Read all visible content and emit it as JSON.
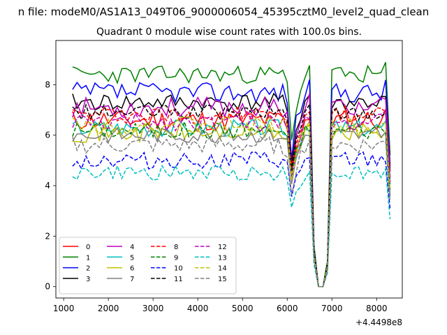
{
  "chart_data": {
    "type": "line",
    "suptitle": "n file: modeM0/AS1A13_049T06_9000006054_45395cztM0_level2_quad_clean",
    "title": "Quadrant 0 module wise count rates with 100.0s bins.",
    "xlabel": "",
    "ylabel": "",
    "x_offset_label": "+4.4498e8",
    "xlim": [
      826,
      8574
    ],
    "ylim": [
      -0.45,
      9.75
    ],
    "xticks": [
      1000,
      2000,
      3000,
      4000,
      5000,
      6000,
      7000,
      8000
    ],
    "yticks": [
      0,
      2,
      4,
      6,
      8
    ],
    "gap_profile": {
      "x": [
        5900,
        6000,
        6100,
        6200,
        6300,
        6400,
        6500,
        6600,
        6700,
        6800,
        6900,
        7000
      ],
      "factor": [
        1.0,
        0.95,
        0.68,
        0.85,
        0.93,
        1.0,
        1.04,
        0.2,
        0.0,
        0.0,
        0.12,
        1.0
      ]
    },
    "tail_profile": {
      "x": [
        8100,
        8200,
        8300
      ],
      "factor": [
        1.0,
        1.02,
        0.62
      ]
    },
    "series": [
      {
        "name": "0",
        "color": "#ff0000",
        "style": "solid",
        "base": 6.6,
        "amp": 0.42,
        "seed": 11
      },
      {
        "name": "1",
        "color": "#008000",
        "style": "solid",
        "base": 8.4,
        "amp": 0.35,
        "seed": 23
      },
      {
        "name": "2",
        "color": "#0000ff",
        "style": "solid",
        "base": 7.7,
        "amp": 0.4,
        "seed": 37
      },
      {
        "name": "3",
        "color": "#000000",
        "style": "solid",
        "base": 7.3,
        "amp": 0.35,
        "seed": 41
      },
      {
        "name": "4",
        "color": "#bf00bf",
        "style": "solid",
        "base": 7.1,
        "amp": 0.4,
        "seed": 53
      },
      {
        "name": "5",
        "color": "#00bfbf",
        "style": "solid",
        "base": 6.3,
        "amp": 0.35,
        "seed": 67
      },
      {
        "name": "6",
        "color": "#bfbf00",
        "style": "solid",
        "base": 6.1,
        "amp": 0.38,
        "seed": 71
      },
      {
        "name": "7",
        "color": "#808080",
        "style": "solid",
        "base": 6.0,
        "amp": 0.3,
        "seed": 83
      },
      {
        "name": "8",
        "color": "#ff0000",
        "style": "dashed",
        "base": 6.8,
        "amp": 0.35,
        "seed": 97
      },
      {
        "name": "9",
        "color": "#008000",
        "style": "dashed",
        "base": 6.2,
        "amp": 0.35,
        "seed": 101
      },
      {
        "name": "10",
        "color": "#0000ff",
        "style": "dashed",
        "base": 5.0,
        "amp": 0.35,
        "seed": 113
      },
      {
        "name": "11",
        "color": "#000000",
        "style": "dashed",
        "base": 6.9,
        "amp": 0.3,
        "seed": 127
      },
      {
        "name": "12",
        "color": "#bf00bf",
        "style": "dashed",
        "base": 6.5,
        "amp": 0.35,
        "seed": 131
      },
      {
        "name": "13",
        "color": "#00bfbf",
        "style": "dashed",
        "base": 4.5,
        "amp": 0.3,
        "seed": 149
      },
      {
        "name": "14",
        "color": "#bfbf00",
        "style": "dashed",
        "base": 6.4,
        "amp": 0.35,
        "seed": 151
      },
      {
        "name": "15",
        "color": "#808080",
        "style": "dashed",
        "base": 5.6,
        "amp": 0.35,
        "seed": 163
      }
    ],
    "x_start": 1200,
    "x_end": 8300,
    "x_step": 100,
    "legend": {
      "location": "lower-left",
      "columns": 4
    }
  }
}
